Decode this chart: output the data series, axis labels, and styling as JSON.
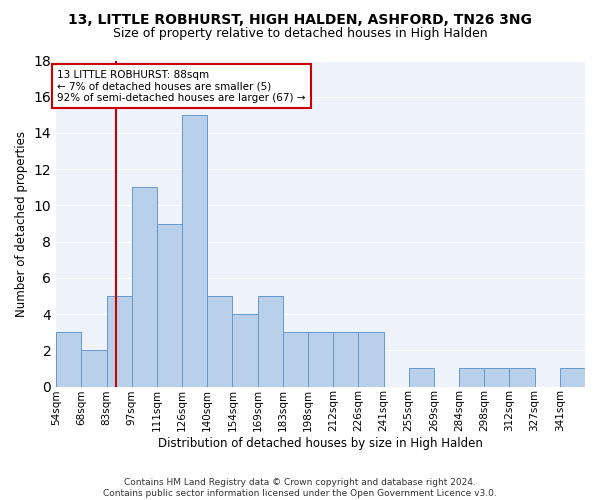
{
  "title1": "13, LITTLE ROBHURST, HIGH HALDEN, ASHFORD, TN26 3NG",
  "title2": "Size of property relative to detached houses in High Halden",
  "xlabel": "Distribution of detached houses by size in High Halden",
  "ylabel": "Number of detached properties",
  "bin_labels": [
    "54sqm",
    "68sqm",
    "83sqm",
    "97sqm",
    "111sqm",
    "126sqm",
    "140sqm",
    "154sqm",
    "169sqm",
    "183sqm",
    "198sqm",
    "212sqm",
    "226sqm",
    "241sqm",
    "255sqm",
    "269sqm",
    "284sqm",
    "298sqm",
    "312sqm",
    "327sqm",
    "341sqm"
  ],
  "bar_values": [
    3,
    2,
    5,
    11,
    9,
    15,
    5,
    4,
    5,
    3,
    3,
    3,
    3,
    0,
    1,
    0,
    1,
    1,
    1,
    0,
    1
  ],
  "bar_color": "#b8d0ea",
  "bar_edgecolor": "#6699cc",
  "subject_bin_index": 2,
  "annotation_text": "13 LITTLE ROBHURST: 88sqm\n← 7% of detached houses are smaller (5)\n92% of semi-detached houses are larger (67) →",
  "annotation_box_color": "#ffffff",
  "annotation_box_edgecolor": "#cc0000",
  "vline_color": "#cc0000",
  "ylim": [
    0,
    18
  ],
  "yticks": [
    0,
    2,
    4,
    6,
    8,
    10,
    12,
    14,
    16,
    18
  ],
  "background_color": "#edf2fb",
  "footer": "Contains HM Land Registry data © Crown copyright and database right 2024.\nContains public sector information licensed under the Open Government Licence v3.0.",
  "title_fontsize": 10,
  "subtitle_fontsize": 9,
  "axis_label_fontsize": 8.5,
  "tick_fontsize": 7.5,
  "annotation_fontsize": 7.5,
  "footer_fontsize": 6.5
}
